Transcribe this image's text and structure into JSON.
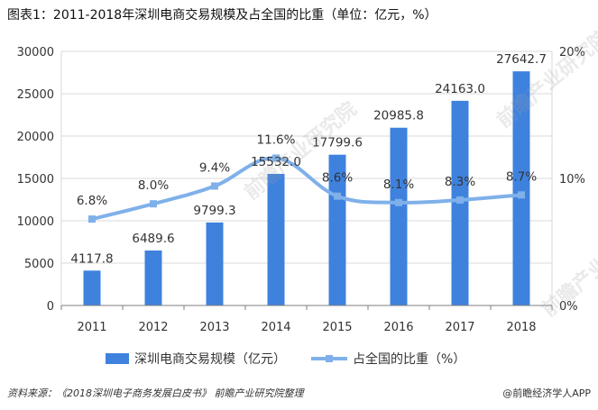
{
  "title": "图表1：2011-2018年深圳电商交易规模及占全国的比重（单位：亿元，%）",
  "footer": {
    "source": "资料来源：《2018深圳电子商务发展白皮书》 前瞻产业研究院整理",
    "credit": "@前瞻经济学人APP"
  },
  "watermark": "前瞻产业研究院",
  "colors": {
    "bar": "#3f82de",
    "line": "#7fb0ea",
    "axis": "#7f7f7f",
    "grid": "#d9d9d9"
  },
  "chart_data": {
    "type": "bar",
    "categories": [
      "2011",
      "2012",
      "2013",
      "2014",
      "2015",
      "2016",
      "2017",
      "2018"
    ],
    "series": [
      {
        "name": "深圳电商交易规模（亿元）",
        "type": "bar",
        "axis": "left",
        "values": [
          4117.8,
          6489.6,
          9799.3,
          15532.0,
          17799.6,
          20985.8,
          24163.0,
          27642.7
        ],
        "labels": [
          "4117.8",
          "6489.6",
          "9799.3",
          "15532.0",
          "17799.6",
          "20985.8",
          "24163.0",
          "27642.7"
        ]
      },
      {
        "name": "占全国的比重（%）",
        "type": "line",
        "axis": "right",
        "values": [
          6.8,
          8.0,
          9.4,
          11.6,
          8.6,
          8.1,
          8.3,
          8.7
        ],
        "labels": [
          "6.8%",
          "8.0%",
          "9.4%",
          "11.6%",
          "8.6%",
          "8.1%",
          "8.3%",
          "8.7%"
        ]
      }
    ],
    "y_left": {
      "ylim": [
        0,
        30000
      ],
      "ticks": [
        "0",
        "5000",
        "10000",
        "15000",
        "20000",
        "25000",
        "30000"
      ],
      "tick_values": [
        0,
        5000,
        10000,
        15000,
        20000,
        25000,
        30000
      ]
    },
    "y_right": {
      "ylim": [
        0,
        20
      ],
      "ticks": [
        "0%",
        "10%",
        "20%"
      ],
      "tick_values": [
        0,
        10,
        20
      ]
    },
    "grid": true,
    "legend": "bottom"
  }
}
